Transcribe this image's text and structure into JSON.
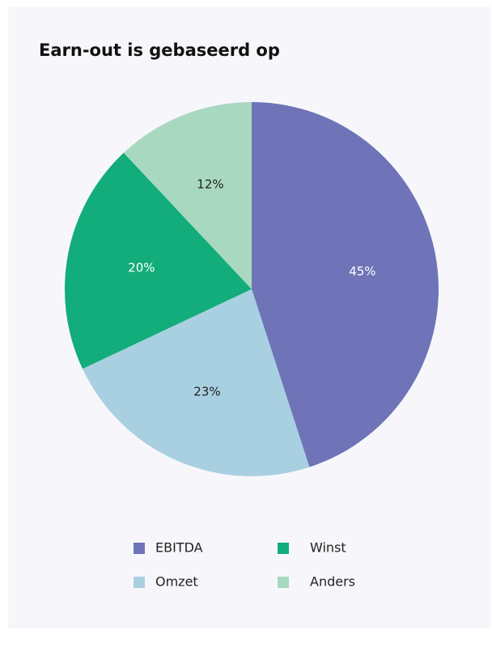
{
  "chart_data": {
    "type": "pie",
    "title": "Earn-out is gebaseerd op",
    "categories": [
      "EBITDA",
      "Omzet",
      "Winst",
      "Anders"
    ],
    "values": [
      45,
      23,
      20,
      12
    ],
    "value_labels": [
      "45%",
      "23%",
      "20%",
      "12%"
    ],
    "colors": [
      "#6f74b8",
      "#a9d0e1",
      "#12ad7a",
      "#a9d8c0"
    ],
    "legend": "bottom"
  }
}
